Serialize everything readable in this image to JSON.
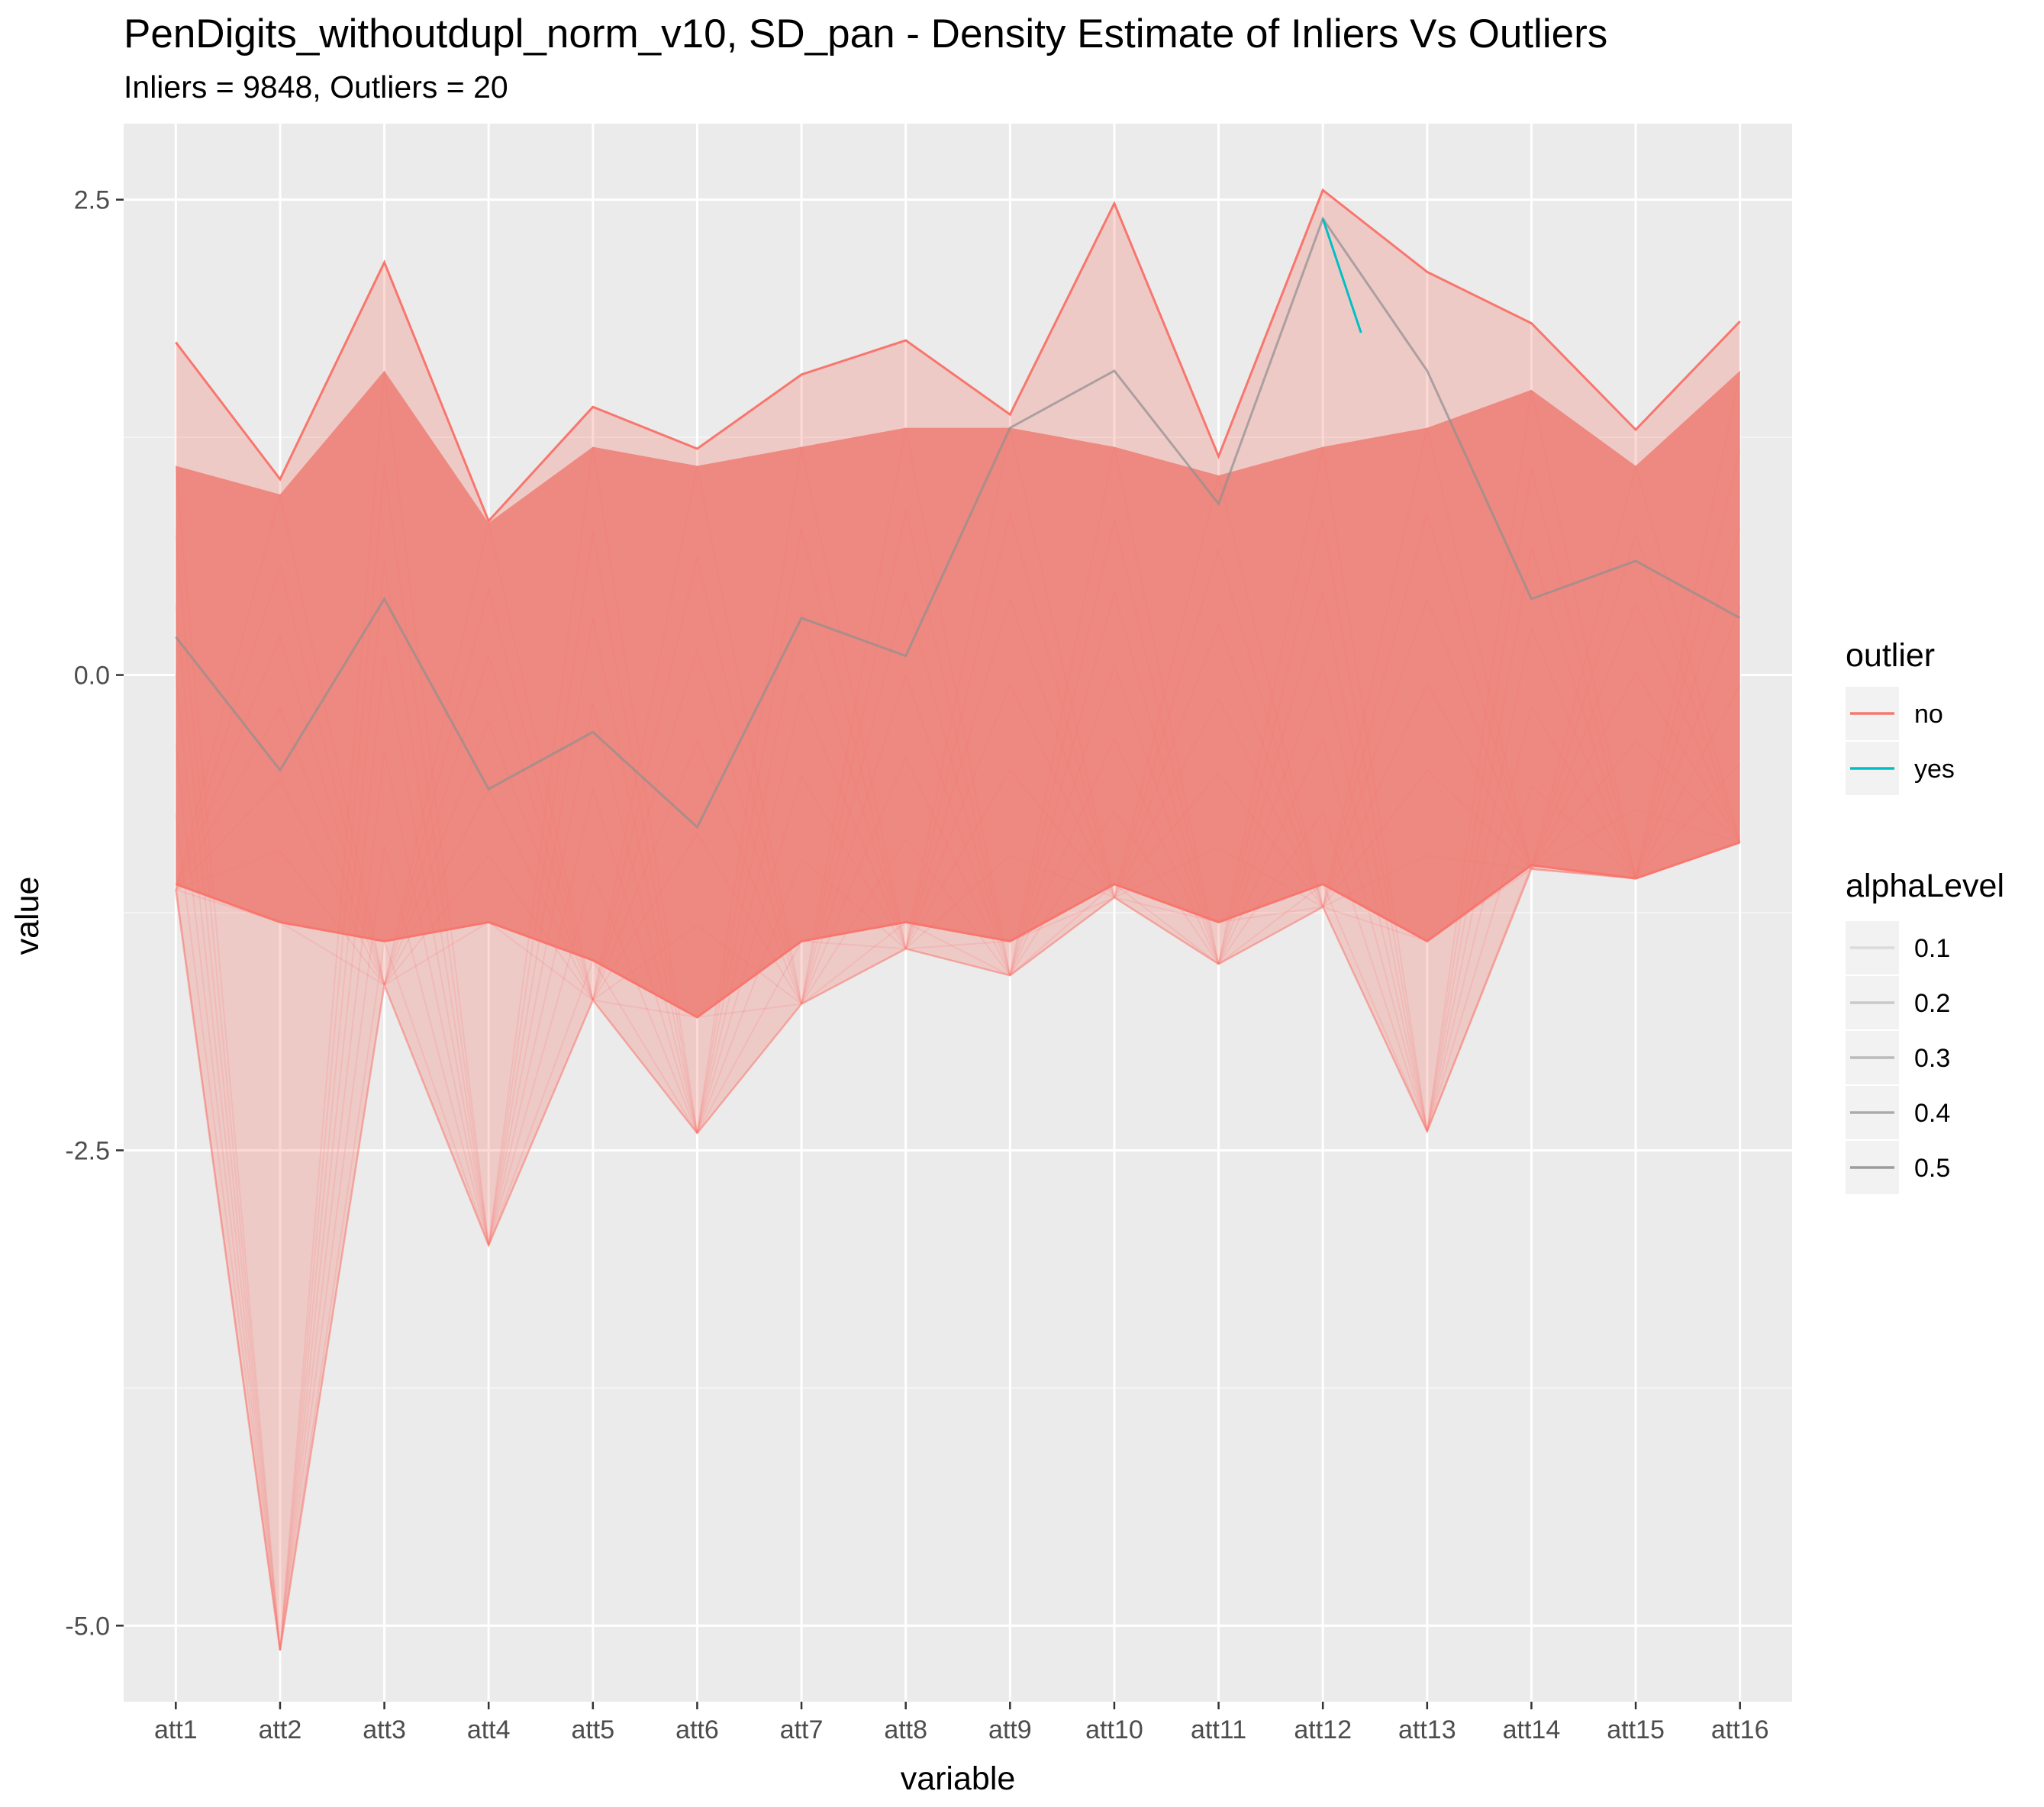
{
  "chart_data": {
    "type": "line",
    "subtype": "parallel-coordinates",
    "title": "PenDigits_withoutdupl_norm_v10, SD_pan - Density Estimate of Inliers Vs Outliers",
    "subtitle": "Inliers = 9848, Outliers = 20",
    "xlabel": "variable",
    "ylabel": "value",
    "categories": [
      "att1",
      "att2",
      "att3",
      "att4",
      "att5",
      "att6",
      "att7",
      "att8",
      "att9",
      "att10",
      "att11",
      "att12",
      "att13",
      "att14",
      "att15",
      "att16"
    ],
    "ylim": [
      -5.4,
      2.9
    ],
    "yticks": [
      2.5,
      0.0,
      -2.5,
      -5.0
    ],
    "ytick_labels": [
      "2.5",
      "0.0",
      "-2.5",
      "-5.0"
    ],
    "grid": true,
    "series": [
      {
        "name": "no",
        "color": "#F8766D",
        "max": [
          1.75,
          1.03,
          2.17,
          0.81,
          1.41,
          1.19,
          1.58,
          1.76,
          1.37,
          2.48,
          1.15,
          2.55,
          2.12,
          1.85,
          1.29,
          1.86
        ],
        "min": [
          -1.13,
          -5.13,
          -1.63,
          -3.0,
          -1.71,
          -2.41,
          -1.73,
          -1.44,
          -1.58,
          -1.17,
          -1.52,
          -1.22,
          -2.4,
          -1.02,
          -1.07,
          -0.88
        ],
        "dense_upper": [
          1.1,
          0.95,
          1.6,
          0.8,
          1.2,
          1.1,
          1.2,
          1.3,
          1.3,
          1.2,
          1.05,
          1.2,
          1.3,
          1.5,
          1.1,
          1.6
        ],
        "dense_lower": [
          -1.1,
          -1.3,
          -1.4,
          -1.3,
          -1.5,
          -1.8,
          -1.4,
          -1.3,
          -1.4,
          -1.1,
          -1.3,
          -1.1,
          -1.4,
          -1.0,
          -1.07,
          -0.88
        ]
      },
      {
        "name": "yes",
        "color": "#00BFC4",
        "values": [
          0.2,
          -0.5,
          0.4,
          -0.6,
          -0.3,
          -0.8,
          0.3,
          0.1,
          1.3,
          1.6,
          0.9,
          2.4,
          1.6,
          0.4,
          0.6,
          0.3
        ]
      }
    ],
    "legend": {
      "position": "right",
      "outlier": {
        "title": "outlier",
        "items": [
          "no",
          "yes"
        ]
      },
      "alpha": {
        "title": "alphaLevel",
        "items": [
          "0.1",
          "0.2",
          "0.3",
          "0.4",
          "0.5"
        ]
      }
    }
  }
}
